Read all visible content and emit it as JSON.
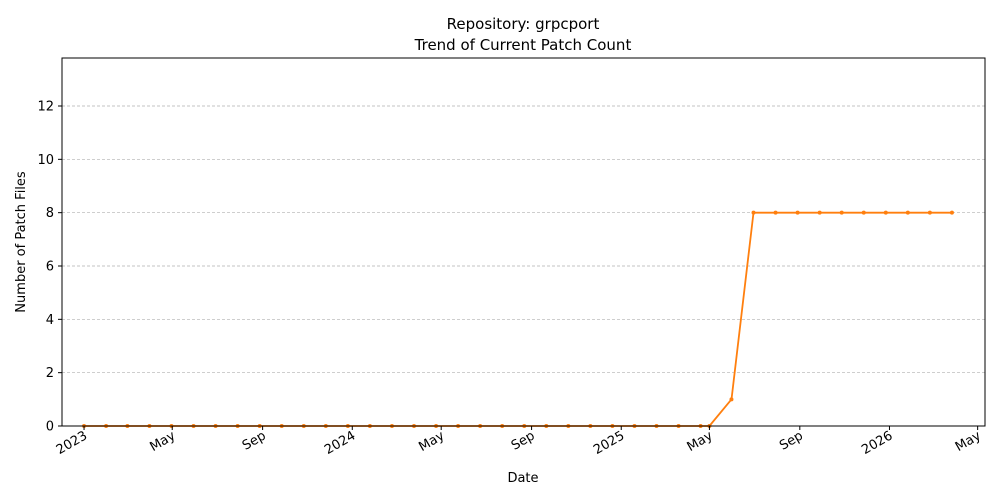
{
  "chart_data": {
    "type": "line",
    "title": "Repository: grpcport",
    "subtitle": "Trend of Current Patch Count",
    "xlabel": "Date",
    "ylabel": "Number of Patch Files",
    "ylim": [
      0,
      13.8
    ],
    "xlim": [
      "2022-12-02",
      "2026-05-11"
    ],
    "y_ticks": [
      0,
      2,
      4,
      6,
      8,
      10,
      12
    ],
    "x_ticks": [
      {
        "date": "2023-01-01",
        "label": "2023"
      },
      {
        "date": "2023-05-01",
        "label": "May"
      },
      {
        "date": "2023-09-01",
        "label": "Sep"
      },
      {
        "date": "2024-01-01",
        "label": "2024"
      },
      {
        "date": "2024-05-01",
        "label": "May"
      },
      {
        "date": "2024-09-01",
        "label": "Sep"
      },
      {
        "date": "2025-01-01",
        "label": "2025"
      },
      {
        "date": "2025-05-01",
        "label": "May"
      },
      {
        "date": "2025-09-01",
        "label": "Sep"
      },
      {
        "date": "2026-01-01",
        "label": "2026"
      },
      {
        "date": "2026-05-01",
        "label": "May"
      }
    ],
    "grid": "y-dashed",
    "line_color": "#ff7f0e",
    "series": [
      {
        "points": [
          {
            "x": "2023-01-01",
            "y": 0
          },
          {
            "x": "2023-01-31",
            "y": 0
          },
          {
            "x": "2023-03-01",
            "y": 0
          },
          {
            "x": "2023-03-31",
            "y": 0
          },
          {
            "x": "2023-04-30",
            "y": 0
          },
          {
            "x": "2023-05-30",
            "y": 0
          },
          {
            "x": "2023-06-29",
            "y": 0
          },
          {
            "x": "2023-07-29",
            "y": 0
          },
          {
            "x": "2023-08-28",
            "y": 0
          },
          {
            "x": "2023-09-27",
            "y": 0
          },
          {
            "x": "2023-10-27",
            "y": 0
          },
          {
            "x": "2023-11-26",
            "y": 0
          },
          {
            "x": "2023-12-26",
            "y": 0
          },
          {
            "x": "2024-01-25",
            "y": 0
          },
          {
            "x": "2024-02-24",
            "y": 0
          },
          {
            "x": "2024-03-25",
            "y": 0
          },
          {
            "x": "2024-04-24",
            "y": 0
          },
          {
            "x": "2024-05-24",
            "y": 0
          },
          {
            "x": "2024-06-23",
            "y": 0
          },
          {
            "x": "2024-07-23",
            "y": 0
          },
          {
            "x": "2024-08-22",
            "y": 0
          },
          {
            "x": "2024-09-21",
            "y": 0
          },
          {
            "x": "2024-10-21",
            "y": 0
          },
          {
            "x": "2024-11-20",
            "y": 0
          },
          {
            "x": "2024-12-20",
            "y": 0
          },
          {
            "x": "2025-01-19",
            "y": 0
          },
          {
            "x": "2025-02-18",
            "y": 0
          },
          {
            "x": "2025-03-20",
            "y": 0
          },
          {
            "x": "2025-04-19",
            "y": 0
          },
          {
            "x": "2025-05-01",
            "y": 0
          },
          {
            "x": "2025-05-31",
            "y": 1
          },
          {
            "x": "2025-06-30",
            "y": 8
          },
          {
            "x": "2025-07-30",
            "y": 8
          },
          {
            "x": "2025-08-29",
            "y": 8
          },
          {
            "x": "2025-09-28",
            "y": 8
          },
          {
            "x": "2025-10-28",
            "y": 8
          },
          {
            "x": "2025-11-27",
            "y": 8
          },
          {
            "x": "2025-12-27",
            "y": 8
          },
          {
            "x": "2026-01-26",
            "y": 8
          },
          {
            "x": "2026-02-25",
            "y": 8
          },
          {
            "x": "2026-03-27",
            "y": 8
          }
        ]
      }
    ]
  }
}
